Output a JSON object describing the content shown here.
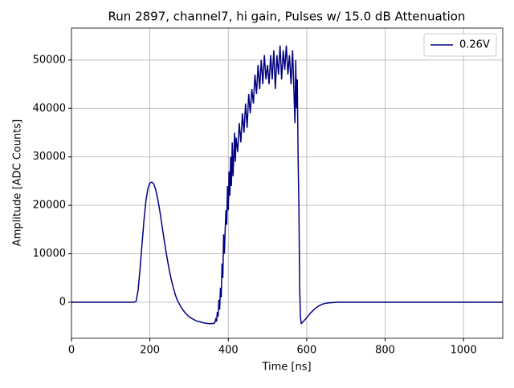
{
  "chart_data": {
    "type": "line",
    "title": "Run 2897, channel7, hi gain, Pulses w/ 15.0 dB Attenuation",
    "xlabel": "Time [ns]",
    "ylabel": "Amplitude [ADC Counts]",
    "x": [
      0,
      100,
      160,
      165,
      170,
      175,
      180,
      185,
      190,
      195,
      200,
      205,
      210,
      215,
      220,
      225,
      230,
      235,
      240,
      245,
      250,
      255,
      260,
      265,
      270,
      280,
      290,
      300,
      310,
      320,
      330,
      340,
      350,
      360,
      365,
      368,
      370,
      372,
      374,
      376,
      378,
      380,
      382,
      384,
      386,
      388,
      390,
      392,
      394,
      396,
      398,
      400,
      402,
      404,
      406,
      408,
      410,
      412,
      414,
      416,
      418,
      420,
      424,
      428,
      432,
      436,
      440,
      444,
      448,
      452,
      456,
      460,
      464,
      468,
      472,
      476,
      480,
      484,
      488,
      492,
      496,
      500,
      504,
      508,
      512,
      516,
      520,
      524,
      528,
      532,
      536,
      540,
      544,
      548,
      552,
      556,
      560,
      564,
      568,
      570,
      572,
      574,
      576,
      578,
      580,
      582,
      584,
      586,
      590,
      600,
      610,
      620,
      630,
      640,
      650,
      660,
      680,
      800,
      1000,
      1100
    ],
    "series": [
      {
        "name": "0.26V",
        "color": "#000080",
        "values": [
          0,
          0,
          0,
          200,
          2500,
          7000,
          12000,
          17000,
          21000,
          23500,
          24600,
          24800,
          24400,
          23200,
          21300,
          19000,
          16300,
          13600,
          11000,
          8600,
          6400,
          4500,
          2900,
          1500,
          400,
          -1100,
          -2200,
          -3000,
          -3500,
          -3900,
          -4100,
          -4300,
          -4400,
          -4400,
          -4300,
          -3500,
          -4000,
          -2000,
          -3000,
          500,
          -1500,
          3000,
          1000,
          8000,
          5000,
          14000,
          10000,
          15000,
          19000,
          16000,
          24000,
          19000,
          27000,
          22000,
          30000,
          24000,
          33000,
          26000,
          30000,
          35000,
          29000,
          34000,
          31000,
          37000,
          33000,
          39000,
          35000,
          41000,
          36000,
          43000,
          39000,
          44000,
          41000,
          47000,
          43000,
          49000,
          44000,
          50000,
          45000,
          51000,
          46000,
          49000,
          45000,
          51000,
          46000,
          52000,
          44000,
          51000,
          47000,
          53000,
          46000,
          52000,
          48000,
          53000,
          47000,
          51000,
          45000,
          52000,
          42000,
          37000,
          50000,
          40000,
          46000,
          30000,
          20000,
          3000,
          -3000,
          -4400,
          -4100,
          -3200,
          -2200,
          -1400,
          -800,
          -400,
          -200,
          -100,
          0,
          0,
          0,
          0
        ]
      }
    ],
    "xlim": [
      0,
      1100
    ],
    "ylim": [
      -7450,
      56600
    ],
    "xticks": [
      0,
      200,
      400,
      600,
      800,
      1000
    ],
    "yticks": [
      0,
      10000,
      20000,
      30000,
      40000,
      50000
    ],
    "grid": true,
    "legend": "upper right"
  }
}
